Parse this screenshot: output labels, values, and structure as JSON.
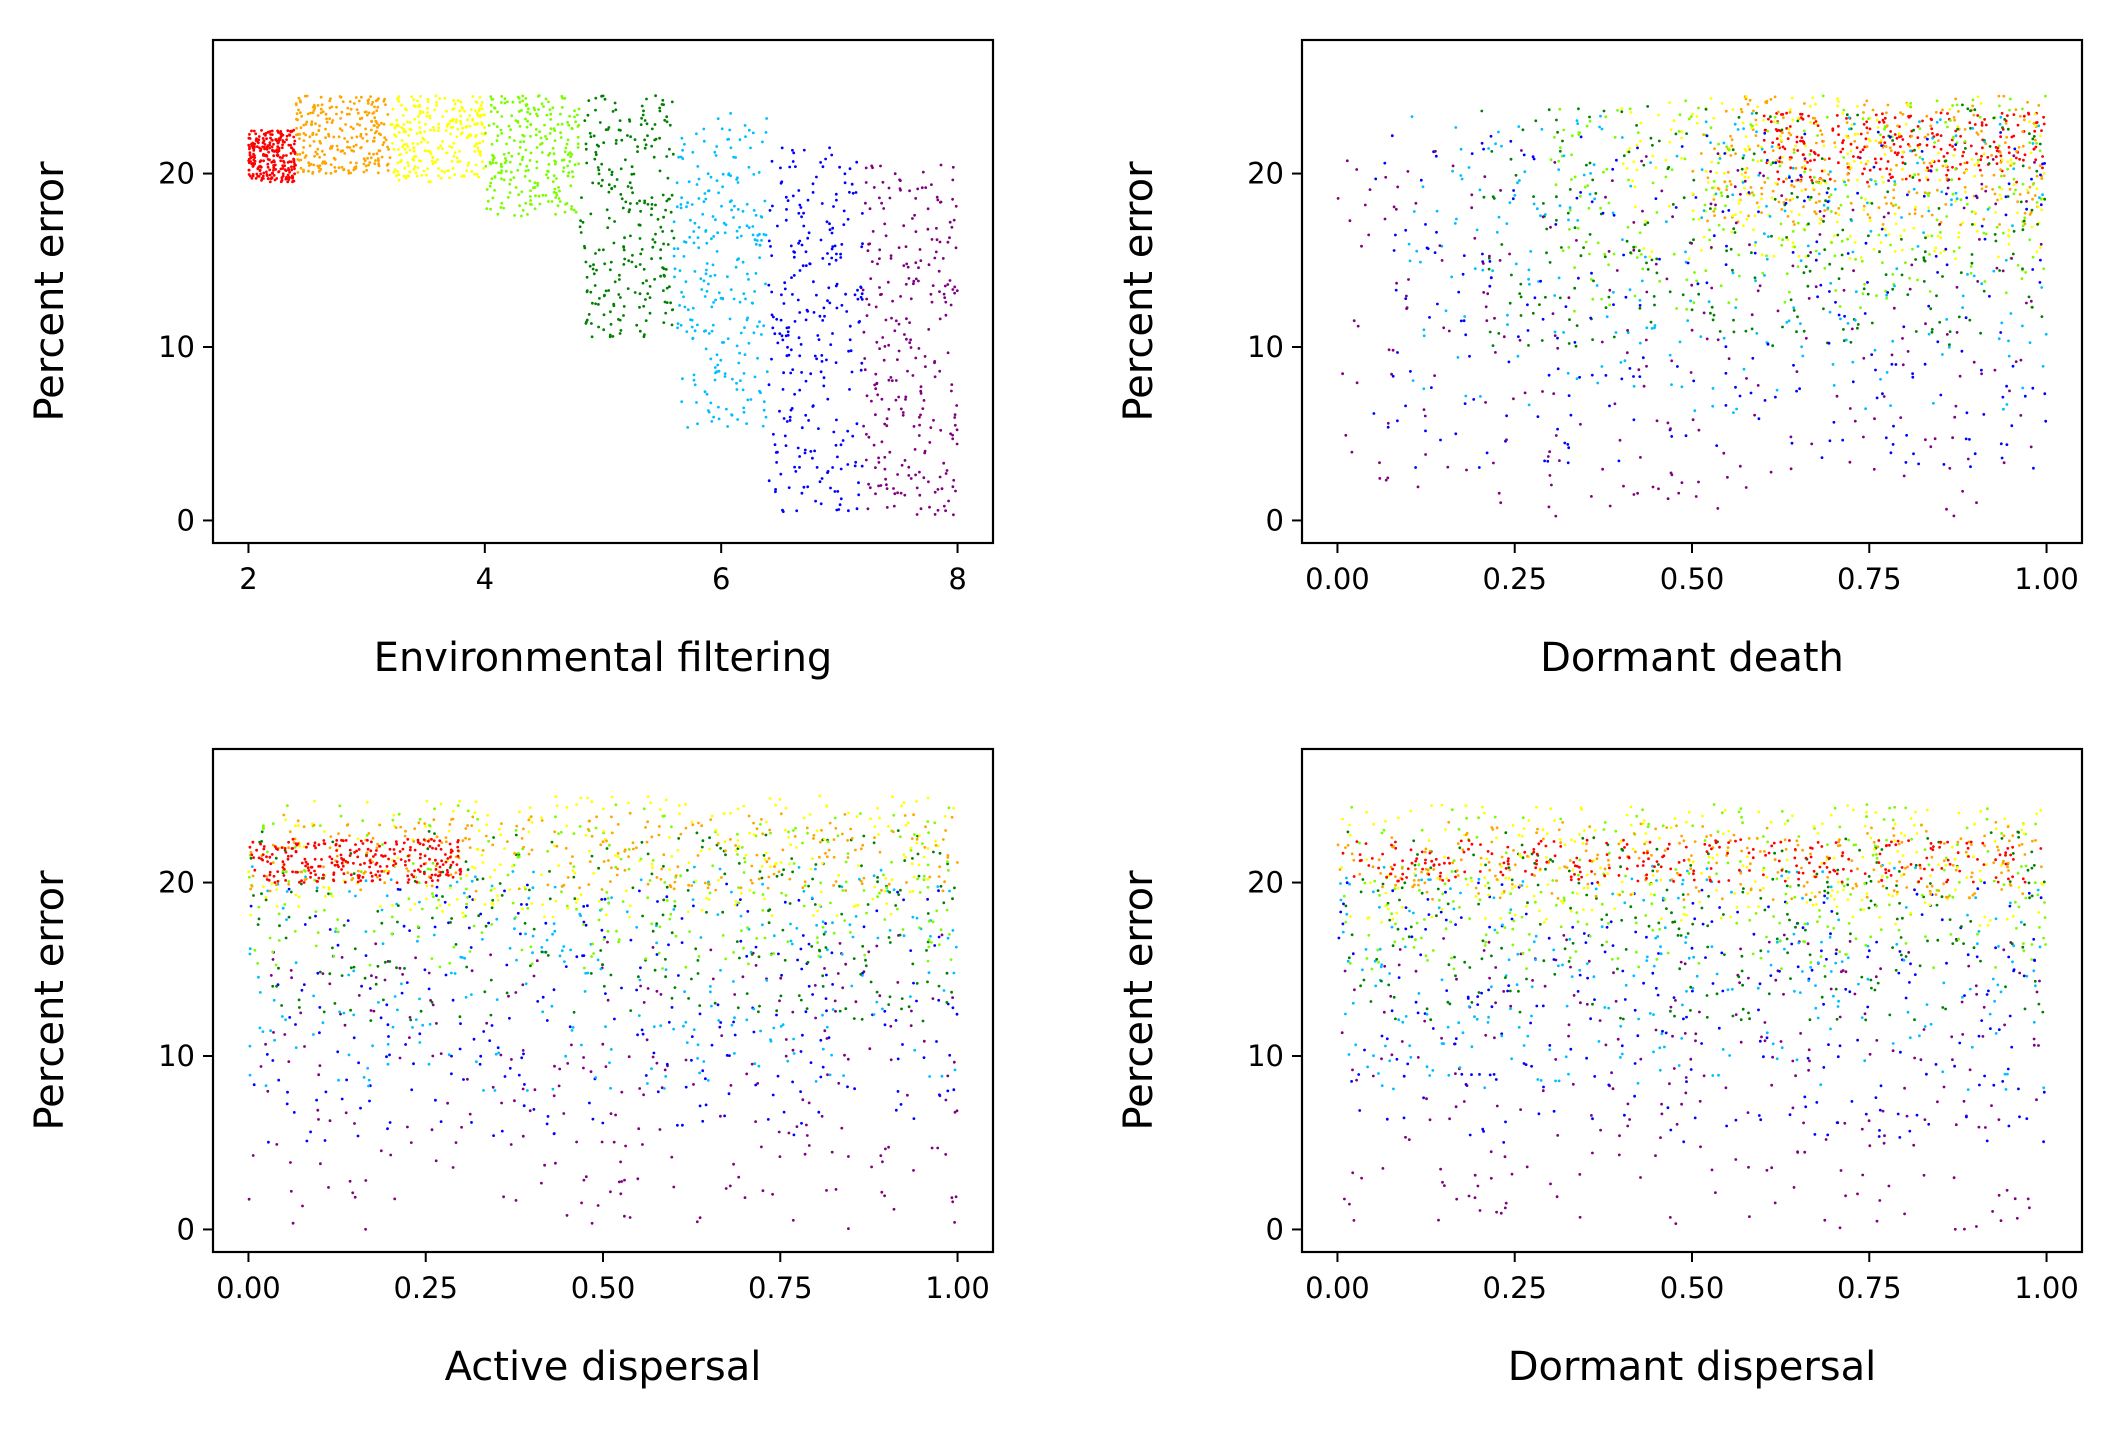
{
  "figure": {
    "background": "#ffffff"
  },
  "chart_data": [
    {
      "type": "scatter",
      "xlabel": "Environmental filtering",
      "ylabel": "Percent error",
      "xlim": [
        1.7,
        8.3
      ],
      "ylim": [
        -1.3,
        27.7
      ],
      "xticks": [
        {
          "value": 2,
          "label": "2"
        },
        {
          "value": 4,
          "label": "4"
        },
        {
          "value": 6,
          "label": "6"
        },
        {
          "value": 8,
          "label": "8"
        }
      ],
      "yticks": [
        {
          "value": 0,
          "label": "0"
        },
        {
          "value": 10,
          "label": "10"
        },
        {
          "value": 20,
          "label": "20"
        }
      ],
      "grid": false,
      "legend": "none",
      "series": [
        {
          "color": "#ff0000",
          "x_range": [
            2.0,
            2.4
          ],
          "y_range": [
            19.5,
            22.5
          ]
        },
        {
          "color": "#ffa500",
          "x_range": [
            2.4,
            3.2
          ],
          "y_range": [
            20.0,
            24.5
          ]
        },
        {
          "color": "#ffff00",
          "x_range": [
            3.2,
            4.0
          ],
          "y_range": [
            19.5,
            24.5
          ]
        },
        {
          "color": "#7cfc00",
          "x_range": [
            4.0,
            4.8
          ],
          "y_range": [
            17.5,
            24.5
          ]
        },
        {
          "color": "#008000",
          "x_range": [
            4.8,
            5.6
          ],
          "y_range": [
            10.5,
            24.5
          ]
        },
        {
          "color": "#00bfff",
          "x_range": [
            5.6,
            6.4
          ],
          "y_range": [
            5.0,
            23.5
          ]
        },
        {
          "color": "#0000ff",
          "x_range": [
            6.4,
            7.2
          ],
          "y_range": [
            0.5,
            21.5
          ]
        },
        {
          "color": "#800080",
          "x_range": [
            7.2,
            8.0
          ],
          "y_range": [
            0.0,
            20.5
          ]
        }
      ]
    },
    {
      "type": "scatter",
      "xlabel": "Dormant death",
      "ylabel": "Percent error",
      "xlim": [
        -0.05,
        1.05
      ],
      "ylim": [
        -1.3,
        27.7
      ],
      "xticks": [
        {
          "value": 0,
          "label": "0.00"
        },
        {
          "value": 0.25,
          "label": "0.25"
        },
        {
          "value": 0.5,
          "label": "0.50"
        },
        {
          "value": 0.75,
          "label": "0.75"
        },
        {
          "value": 1,
          "label": "1.00"
        }
      ],
      "yticks": [
        {
          "value": 0,
          "label": "0"
        },
        {
          "value": 10,
          "label": "10"
        },
        {
          "value": 20,
          "label": "20"
        }
      ],
      "grid": false,
      "legend": "none",
      "series": [
        {
          "color": "#ff0000",
          "x_range": [
            0.6,
            1.0
          ],
          "y_range": [
            19.5,
            23.5
          ]
        },
        {
          "color": "#ffa500",
          "x_range": [
            0.5,
            1.0
          ],
          "y_range": [
            17.0,
            24.5
          ]
        },
        {
          "color": "#ffff00",
          "x_range": [
            0.4,
            1.0
          ],
          "y_range": [
            15.0,
            24.5
          ]
        },
        {
          "color": "#7cfc00",
          "x_range": [
            0.3,
            1.0
          ],
          "y_range": [
            12.0,
            24.5
          ]
        },
        {
          "color": "#008000",
          "x_range": [
            0.2,
            1.0
          ],
          "y_range": [
            10.0,
            24.0
          ]
        },
        {
          "color": "#00bfff",
          "x_range": [
            0.1,
            1.0
          ],
          "y_range": [
            6.0,
            23.5
          ]
        },
        {
          "color": "#0000ff",
          "x_range": [
            0.05,
            1.0
          ],
          "y_range": [
            3.0,
            22.5
          ]
        },
        {
          "color": "#800080",
          "x_range": [
            0.0,
            1.0
          ],
          "y_range": [
            0.0,
            21.5
          ]
        }
      ]
    },
    {
      "type": "scatter",
      "xlabel": "Active dispersal",
      "ylabel": "Percent error",
      "xlim": [
        -0.05,
        1.05
      ],
      "ylim": [
        -1.3,
        27.7
      ],
      "xticks": [
        {
          "value": 0,
          "label": "0.00"
        },
        {
          "value": 0.25,
          "label": "0.25"
        },
        {
          "value": 0.5,
          "label": "0.50"
        },
        {
          "value": 0.75,
          "label": "0.75"
        },
        {
          "value": 1,
          "label": "1.00"
        }
      ],
      "yticks": [
        {
          "value": 0,
          "label": "0"
        },
        {
          "value": 10,
          "label": "10"
        },
        {
          "value": 20,
          "label": "20"
        }
      ],
      "grid": false,
      "legend": "none",
      "series": [
        {
          "color": "#800080",
          "x_range": [
            0.0,
            1.0
          ],
          "y_range": [
            0.0,
            17.0
          ]
        },
        {
          "color": "#0000ff",
          "x_range": [
            0.0,
            1.0
          ],
          "y_range": [
            5.0,
            20.0
          ]
        },
        {
          "color": "#00bfff",
          "x_range": [
            0.0,
            1.0
          ],
          "y_range": [
            8.0,
            21.0
          ]
        },
        {
          "color": "#008000",
          "x_range": [
            0.0,
            1.0
          ],
          "y_range": [
            12.0,
            23.0
          ]
        },
        {
          "color": "#7cfc00",
          "x_range": [
            0.0,
            1.0
          ],
          "y_range": [
            15.0,
            24.5
          ]
        },
        {
          "color": "#ffff00",
          "x_range": [
            0.0,
            1.0
          ],
          "y_range": [
            18.0,
            25.0
          ]
        },
        {
          "color": "#ffa500",
          "x_range": [
            0.0,
            1.0
          ],
          "y_range": [
            19.5,
            24.0
          ]
        },
        {
          "color": "#ff0000",
          "x_range": [
            0.0,
            0.3
          ],
          "y_range": [
            20.0,
            22.5
          ]
        }
      ]
    },
    {
      "type": "scatter",
      "xlabel": "Dormant dispersal",
      "ylabel": "Percent error",
      "xlim": [
        -0.05,
        1.05
      ],
      "ylim": [
        -1.3,
        27.7
      ],
      "xticks": [
        {
          "value": 0,
          "label": "0.00"
        },
        {
          "value": 0.25,
          "label": "0.25"
        },
        {
          "value": 0.5,
          "label": "0.50"
        },
        {
          "value": 0.75,
          "label": "0.75"
        },
        {
          "value": 1,
          "label": "1.00"
        }
      ],
      "yticks": [
        {
          "value": 0,
          "label": "0"
        },
        {
          "value": 10,
          "label": "10"
        },
        {
          "value": 20,
          "label": "20"
        }
      ],
      "grid": false,
      "legend": "none",
      "series": [
        {
          "color": "#800080",
          "x_range": [
            0.0,
            1.0
          ],
          "y_range": [
            0.0,
            17.0
          ]
        },
        {
          "color": "#0000ff",
          "x_range": [
            0.0,
            1.0
          ],
          "y_range": [
            5.0,
            20.0
          ]
        },
        {
          "color": "#00bfff",
          "x_range": [
            0.0,
            1.0
          ],
          "y_range": [
            8.0,
            21.0
          ]
        },
        {
          "color": "#008000",
          "x_range": [
            0.0,
            1.0
          ],
          "y_range": [
            12.0,
            23.0
          ]
        },
        {
          "color": "#7cfc00",
          "x_range": [
            0.0,
            1.0
          ],
          "y_range": [
            15.0,
            24.5
          ]
        },
        {
          "color": "#ffff00",
          "x_range": [
            0.0,
            1.0
          ],
          "y_range": [
            17.5,
            24.5
          ]
        },
        {
          "color": "#ffa500",
          "x_range": [
            0.0,
            1.0
          ],
          "y_range": [
            19.0,
            23.5
          ]
        },
        {
          "color": "#ff0000",
          "x_range": [
            0.0,
            1.0
          ],
          "y_range": [
            20.0,
            22.5
          ]
        }
      ]
    }
  ]
}
